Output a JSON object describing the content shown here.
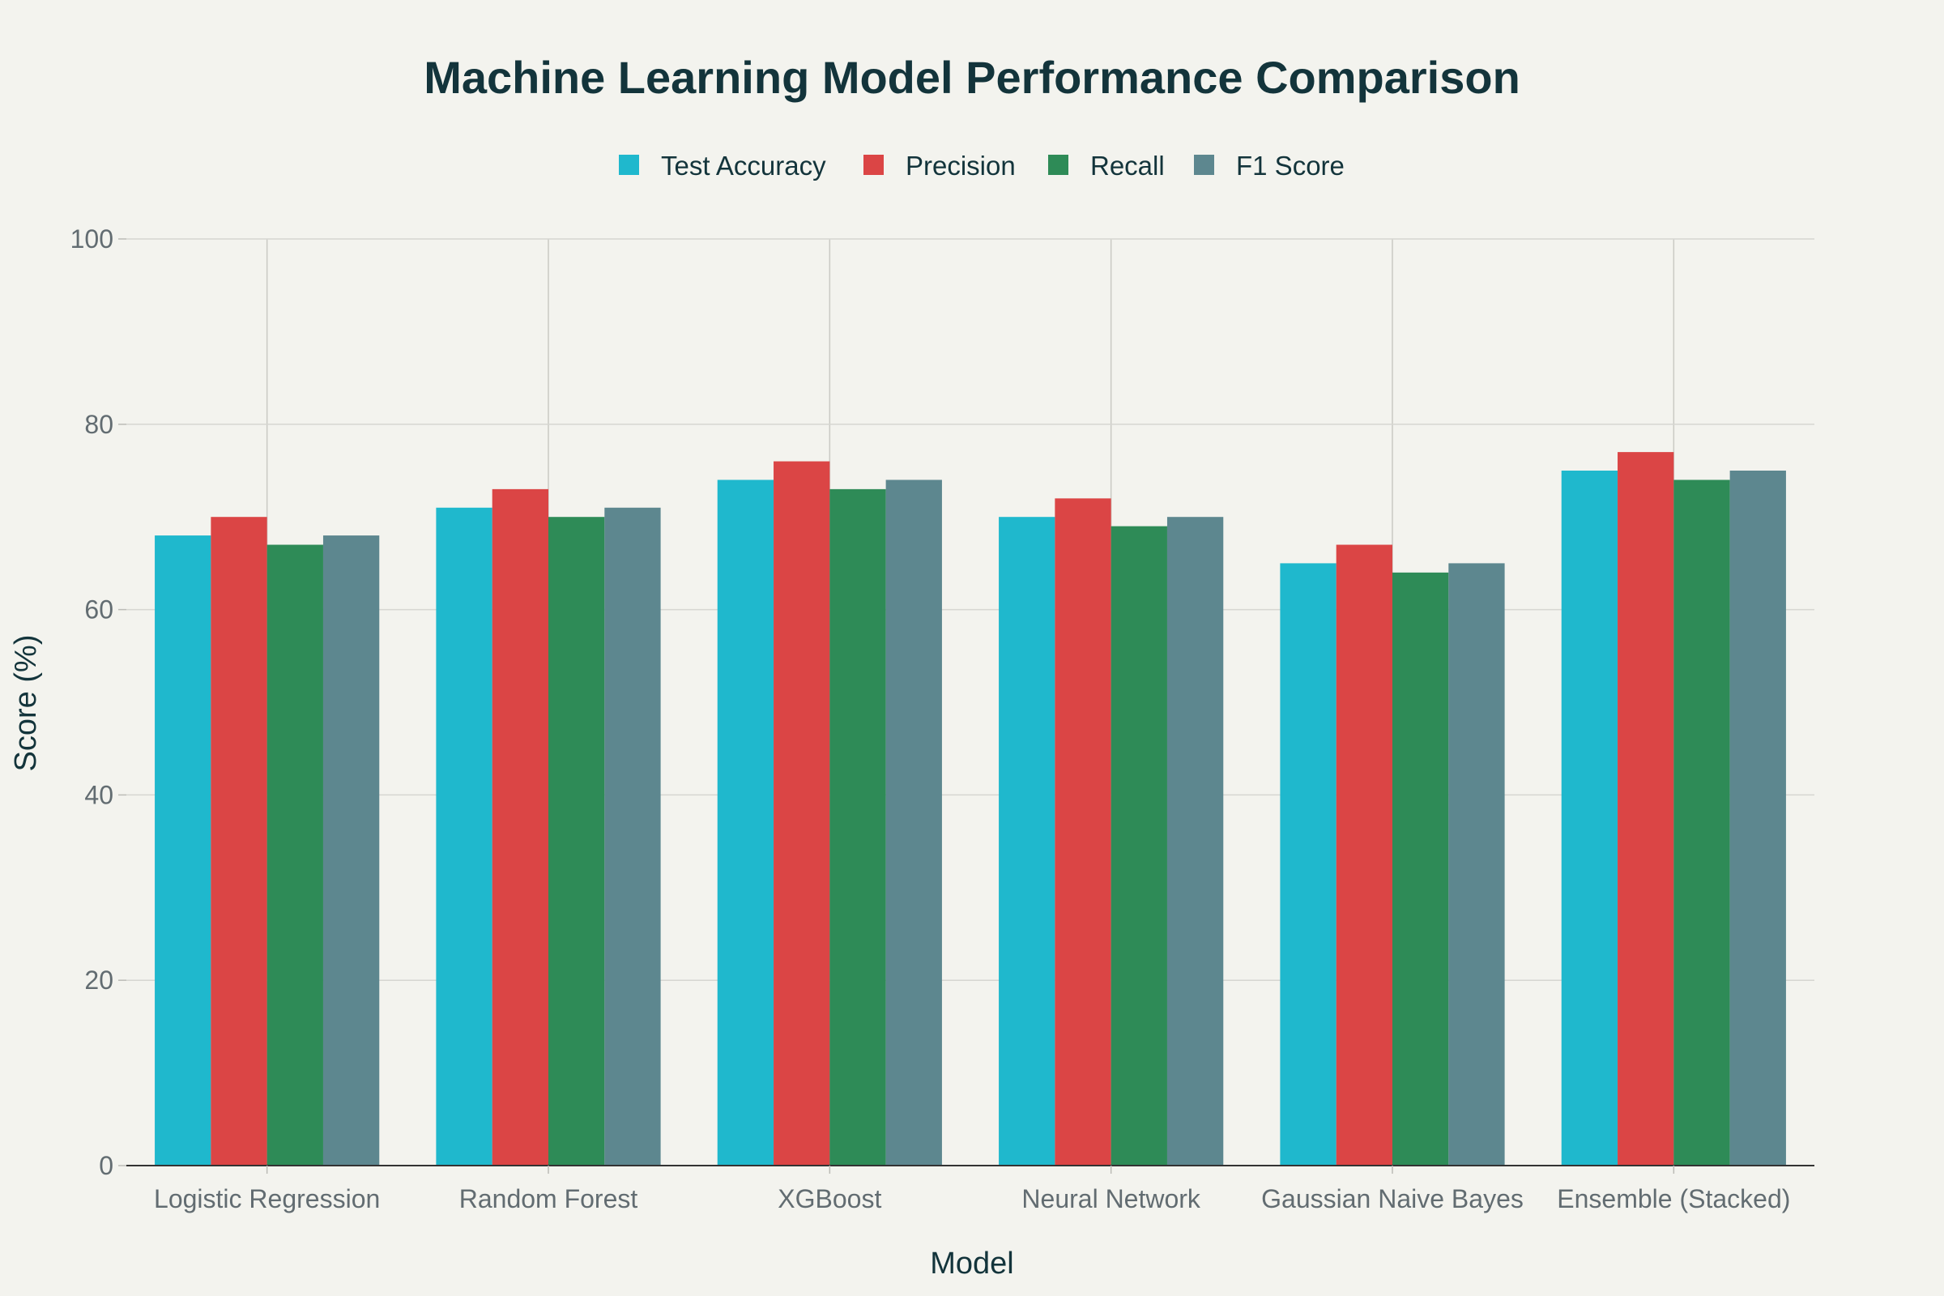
{
  "chart_data": {
    "type": "bar",
    "title": "Machine Learning Model Performance Comparison",
    "xlabel": "Model",
    "ylabel": "Score (%)",
    "ylim": [
      0,
      100
    ],
    "yticks": [
      0,
      20,
      40,
      60,
      80,
      100
    ],
    "grid": true,
    "legend_position": "top-center",
    "categories": [
      "Logistic Regression",
      "Random Forest",
      "XGBoost",
      "Neural Network",
      "Gaussian Naive Bayes",
      "Ensemble (Stacked)"
    ],
    "series": [
      {
        "name": "Test Accuracy",
        "color": "#1fb8cd",
        "values": [
          68,
          71,
          74,
          70,
          65,
          75
        ]
      },
      {
        "name": "Precision",
        "color": "#db4545",
        "values": [
          70,
          73,
          76,
          72,
          67,
          77
        ]
      },
      {
        "name": "Recall",
        "color": "#2e8b57",
        "values": [
          67,
          70,
          73,
          69,
          64,
          74
        ]
      },
      {
        "name": "F1 Score",
        "color": "#5d878f",
        "values": [
          68,
          71,
          74,
          70,
          65,
          75
        ]
      }
    ]
  }
}
